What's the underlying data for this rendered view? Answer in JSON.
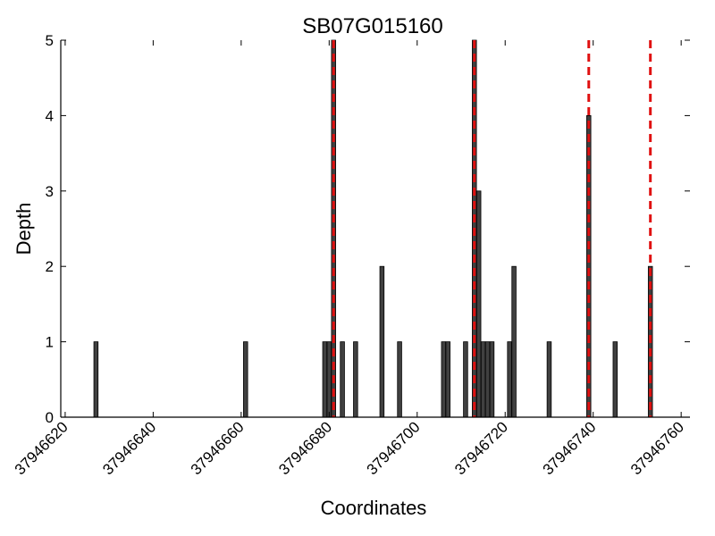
{
  "chart_data": {
    "type": "bar",
    "title": "SB07G015160",
    "xlabel": "Coordinates",
    "ylabel": "Depth",
    "xlim": [
      37946619,
      37946762
    ],
    "ylim": [
      0,
      5
    ],
    "xticks": [
      37946620,
      37946640,
      37946660,
      37946680,
      37946700,
      37946720,
      37946740,
      37946760
    ],
    "yticks": [
      0,
      1,
      2,
      3,
      4,
      5
    ],
    "x": [
      37946627,
      37946661,
      37946679,
      37946680,
      37946681,
      37946683,
      37946686,
      37946692,
      37946696,
      37946706,
      37946707,
      37946711,
      37946713,
      37946714,
      37946715,
      37946716,
      37946717,
      37946721,
      37946722,
      37946730,
      37946739,
      37946745,
      37946753
    ],
    "values": [
      1,
      1,
      1,
      1,
      5,
      1,
      1,
      2,
      1,
      1,
      1,
      1,
      5,
      3,
      1,
      1,
      1,
      1,
      2,
      1,
      4,
      1,
      2
    ],
    "marker_lines": [
      37946681,
      37946713,
      37946739,
      37946753
    ],
    "colors": {
      "bars": "#404040",
      "bar_edge": "#000000",
      "marker_lines": "#e01010"
    },
    "grid": false,
    "legend": "none"
  }
}
